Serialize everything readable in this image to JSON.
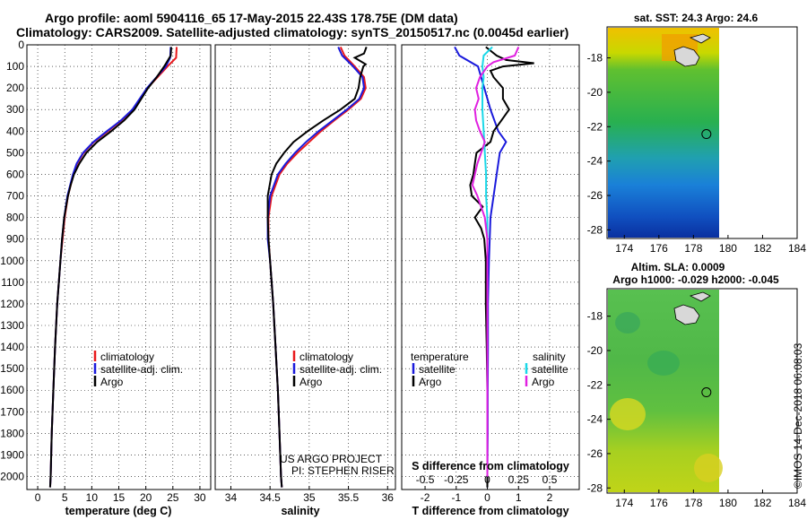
{
  "header": {
    "line1": "Argo profile: aoml 5904116_65 17-May-2015 22.43S 178.75E (DM data)",
    "line2": "Climatology: CARS2009. Satellite-adjusted climatology: synTS_20150517.nc (0.0045d earlier)"
  },
  "colors": {
    "climatology": "#e8181c",
    "satellite": "#1a1adc",
    "argo": "#000000",
    "sat_salinity": "#1ad8e8",
    "argo_salinity": "#e020e0"
  },
  "depth_ticks": [
    "0",
    "100",
    "200",
    "300",
    "400",
    "500",
    "600",
    "700",
    "800",
    "900",
    "1000",
    "1100",
    "1200",
    "1300",
    "1400",
    "1500",
    "1600",
    "1700",
    "1800",
    "1900",
    "2000"
  ],
  "chart_data": [
    {
      "type": "line",
      "xlabel": "temperature (deg C)",
      "ylabel": "",
      "xlim": [
        -2,
        32
      ],
      "ylim": [
        2060,
        0
      ],
      "xticks": [
        "0",
        "5",
        "10",
        "15",
        "20",
        "25",
        "30"
      ],
      "legend": [
        "climatology",
        "satellite-adj. clim.",
        "Argo"
      ],
      "series": [
        {
          "name": "climatology",
          "color": "#e8181c",
          "depth": [
            10,
            60,
            100,
            200,
            300,
            350,
            400,
            450,
            500,
            550,
            600,
            700,
            800,
            900,
            1000,
            1200,
            1400,
            1600,
            1800,
            2000,
            2050
          ],
          "values": [
            25.7,
            25.6,
            24.0,
            20.3,
            17.6,
            15.5,
            13.0,
            10.4,
            8.5,
            7.3,
            6.6,
            5.6,
            5.0,
            4.6,
            4.2,
            3.6,
            3.2,
            2.9,
            2.6,
            2.4,
            2.3
          ]
        },
        {
          "name": "satellite-adj. clim.",
          "color": "#1a1adc",
          "depth": [
            10,
            60,
            100,
            200,
            300,
            350,
            400,
            450,
            500,
            550,
            600,
            700,
            800,
            900,
            1000,
            1200,
            1400,
            1600,
            1800,
            2000,
            2050
          ],
          "values": [
            24.6,
            24.5,
            23.7,
            20.2,
            17.5,
            15.4,
            12.8,
            10.3,
            8.4,
            7.2,
            6.5,
            5.5,
            4.9,
            4.5,
            4.2,
            3.6,
            3.2,
            2.9,
            2.6,
            2.4,
            2.3
          ]
        },
        {
          "name": "Argo",
          "color": "#000000",
          "depth": [
            10,
            50,
            100,
            150,
            200,
            300,
            350,
            400,
            450,
            500,
            550,
            600,
            650,
            700,
            800,
            900,
            1000,
            1200,
            1400,
            1600,
            1800,
            2000,
            2050
          ],
          "values": [
            24.7,
            24.6,
            23.4,
            22.0,
            20.4,
            17.9,
            16.0,
            13.6,
            11.0,
            9.0,
            7.7,
            6.7,
            6.1,
            5.6,
            4.9,
            4.5,
            4.2,
            3.6,
            3.2,
            2.9,
            2.6,
            2.4,
            2.3
          ]
        }
      ],
      "annotations": []
    },
    {
      "type": "line",
      "xlabel": "salinity",
      "ylabel": "",
      "xlim": [
        33.8,
        36.1
      ],
      "ylim": [
        2060,
        0
      ],
      "xticks": [
        "34",
        "34.5",
        "35",
        "35.5",
        "36"
      ],
      "legend": [
        "climatology",
        "satellite-adj. clim.",
        "Argo"
      ],
      "series": [
        {
          "name": "climatology",
          "color": "#e8181c",
          "depth": [
            10,
            50,
            100,
            150,
            200,
            250,
            300,
            350,
            400,
            450,
            500,
            550,
            600,
            700,
            800,
            900,
            1000,
            1200,
            1400,
            1600,
            1800,
            2000,
            2050
          ],
          "values": [
            35.4,
            35.45,
            35.58,
            35.7,
            35.72,
            35.66,
            35.5,
            35.32,
            35.15,
            35.0,
            34.85,
            34.72,
            34.62,
            34.52,
            34.48,
            34.48,
            34.5,
            34.54,
            34.57,
            34.6,
            34.62,
            34.64,
            34.65
          ]
        },
        {
          "name": "satellite-adj. clim.",
          "color": "#1a1adc",
          "depth": [
            10,
            50,
            100,
            150,
            200,
            250,
            300,
            350,
            400,
            450,
            500,
            550,
            600,
            700,
            800,
            900,
            1000,
            1200,
            1400,
            1600,
            1800,
            2000,
            2050
          ],
          "values": [
            35.37,
            35.42,
            35.56,
            35.68,
            35.7,
            35.64,
            35.48,
            35.3,
            35.12,
            34.96,
            34.82,
            34.7,
            34.6,
            34.5,
            34.47,
            34.47,
            34.5,
            34.54,
            34.57,
            34.6,
            34.62,
            34.64,
            34.65
          ]
        },
        {
          "name": "Argo",
          "color": "#000000",
          "depth": [
            10,
            40,
            60,
            90,
            100,
            150,
            200,
            250,
            300,
            350,
            400,
            450,
            500,
            550,
            600,
            700,
            800,
            900,
            1000,
            1200,
            1400,
            1600,
            1800,
            2000,
            2050
          ],
          "values": [
            35.73,
            35.7,
            35.58,
            35.72,
            35.69,
            35.65,
            35.63,
            35.58,
            35.4,
            35.18,
            34.98,
            34.8,
            34.68,
            34.58,
            34.52,
            34.47,
            34.47,
            34.48,
            34.5,
            34.54,
            34.57,
            34.6,
            34.62,
            34.64,
            34.65
          ]
        }
      ],
      "annotations": [
        "US ARGO PROJECT",
        "PI: STEPHEN RISER"
      ]
    },
    {
      "type": "line",
      "xlabel": "T difference from climatology",
      "secondary_xlabel": "S difference from climatology",
      "ylabel": "",
      "xlim": [
        -2.75,
        2.95
      ],
      "ylim": [
        2060,
        0
      ],
      "xticks": [
        "-2",
        "-1",
        "0",
        "1",
        "2"
      ],
      "secondary_xticks": [
        "-0.5",
        "-0.25",
        "0",
        "0.25",
        "0.5"
      ],
      "legend_left_title": "temperature",
      "legend_right_title": "salinity",
      "legend_left": [
        "satellite",
        "Argo"
      ],
      "legend_right": [
        "satellite",
        "Argo"
      ],
      "series": [
        {
          "name": "satellite",
          "group": "temperature",
          "color": "#1a1adc",
          "depth": [
            10,
            50,
            100,
            200,
            300,
            400,
            450,
            500,
            600,
            700,
            800,
            1000,
            1200,
            1400,
            1600,
            1800,
            2000,
            2050
          ],
          "values": [
            -1.05,
            -0.9,
            -0.3,
            -0.1,
            0.1,
            0.35,
            0.6,
            0.4,
            0.3,
            0.2,
            0.1,
            0.05,
            0.02,
            0.02,
            0.01,
            0.01,
            0.0,
            0.0
          ]
        },
        {
          "name": "Argo",
          "group": "temperature",
          "color": "#000000",
          "depth": [
            10,
            50,
            70,
            85,
            100,
            120,
            150,
            200,
            250,
            300,
            350,
            400,
            450,
            500,
            550,
            600,
            650,
            700,
            750,
            800,
            850,
            900,
            1000,
            1200,
            1400,
            1600,
            1800,
            2000,
            2050
          ],
          "values": [
            -0.05,
            0.3,
            0.6,
            1.5,
            0.5,
            0.1,
            0.2,
            0.5,
            0.5,
            0.7,
            0.45,
            0.2,
            0.1,
            -0.35,
            -0.4,
            -0.45,
            -0.55,
            -0.5,
            -0.15,
            -0.4,
            -0.2,
            -0.1,
            -0.05,
            -0.05,
            -0.02,
            0.0,
            0.0,
            0.0,
            0.0
          ]
        },
        {
          "name": "satellite",
          "group": "salinity",
          "color": "#1ad8e8",
          "depth": [
            10,
            50,
            100,
            150,
            200,
            300,
            400,
            500,
            600,
            700,
            800,
            1000,
            1200,
            1400,
            1600,
            1800,
            2000
          ],
          "values": [
            0.04,
            -0.03,
            -0.04,
            -0.03,
            -0.04,
            -0.04,
            -0.03,
            -0.02,
            -0.01,
            -0.01,
            0.0,
            0.0,
            0.0,
            0.0,
            0.0,
            0.0,
            0.0
          ]
        },
        {
          "name": "Argo",
          "group": "salinity",
          "color": "#e020e0",
          "depth": [
            10,
            50,
            80,
            100,
            150,
            200,
            250,
            300,
            350,
            400,
            450,
            500,
            550,
            600,
            650,
            700,
            800,
            900,
            1000,
            1200,
            1400,
            1600,
            1800,
            2000
          ],
          "values": [
            0.25,
            0.22,
            0.05,
            0.0,
            -0.06,
            -0.09,
            -0.07,
            -0.1,
            -0.09,
            -0.06,
            -0.02,
            -0.05,
            -0.08,
            -0.1,
            -0.12,
            -0.08,
            -0.02,
            0.0,
            0.0,
            0.0,
            0.0,
            0.0,
            0.0,
            0.0
          ]
        }
      ]
    },
    {
      "type": "heatmap",
      "title": "sat. SST: 24.3 Argo: 24.6",
      "xlim": [
        173,
        184
      ],
      "ylim": [
        -28.5,
        -16.2
      ],
      "xticks": [
        "174",
        "176",
        "178",
        "180",
        "182",
        "184"
      ],
      "yticks": [
        "-18",
        "-20",
        "-22",
        "-24",
        "-26",
        "-28"
      ],
      "data_extent_x": [
        173,
        180
      ],
      "profile_location": [
        178.75,
        -22.43
      ]
    },
    {
      "type": "heatmap",
      "title": "Altim. SLA: 0.0009",
      "subtitle": "Argo h1000: -0.029 h2000: -0.045",
      "xlim": [
        173,
        184
      ],
      "ylim": [
        -28.3,
        -16.4
      ],
      "xticks": [
        "174",
        "176",
        "178",
        "180",
        "182",
        "184"
      ],
      "yticks": [
        "-18",
        "-20",
        "-22",
        "-24",
        "-26",
        "-28"
      ],
      "data_extent_x": [
        173,
        180
      ],
      "profile_location": [
        178.75,
        -22.43
      ]
    }
  ],
  "credit": "©IMOS 14-Dec-2018 06:08:03"
}
